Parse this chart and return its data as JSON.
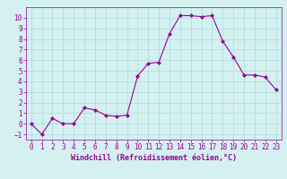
{
  "x": [
    0,
    1,
    2,
    3,
    4,
    5,
    6,
    7,
    8,
    9,
    10,
    11,
    12,
    13,
    14,
    15,
    16,
    17,
    18,
    19,
    20,
    21,
    22,
    23
  ],
  "y": [
    0,
    -1,
    0.5,
    0,
    0,
    1.5,
    1.3,
    0.8,
    0.7,
    0.8,
    4.5,
    5.7,
    5.8,
    8.5,
    10.2,
    10.2,
    10.1,
    10.2,
    7.8,
    6.3,
    4.6,
    4.6,
    4.4,
    3.2
  ],
  "line_color": "#990099",
  "marker_color": "#990099",
  "bg_color": "#d4f0f0",
  "grid_color": "#aadddd",
  "xlabel": "Windchill (Refroidissement éolien,°C)",
  "xlim": [
    -0.5,
    23.5
  ],
  "ylim": [
    -1.5,
    11
  ],
  "yticks": [
    -1,
    0,
    1,
    2,
    3,
    4,
    5,
    6,
    7,
    8,
    9,
    10
  ],
  "xticks": [
    0,
    1,
    2,
    3,
    4,
    5,
    6,
    7,
    8,
    9,
    10,
    11,
    12,
    13,
    14,
    15,
    16,
    17,
    18,
    19,
    20,
    21,
    22,
    23
  ],
  "tick_color": "#990099",
  "xlabel_color": "#990099",
  "font": "monospace",
  "tick_fontsize": 5.5,
  "xlabel_fontsize": 6.0
}
